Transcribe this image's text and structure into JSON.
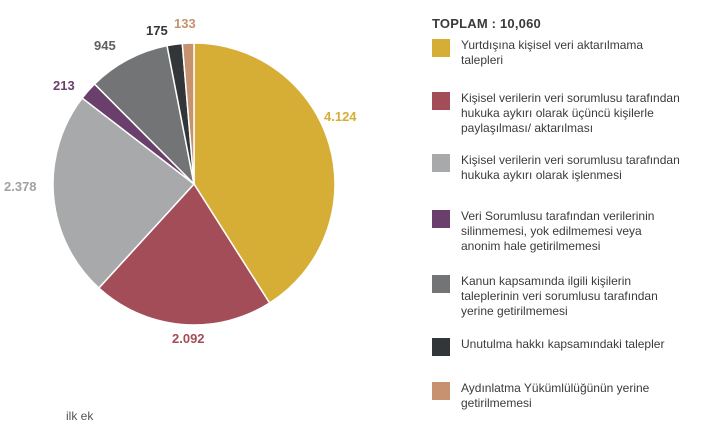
{
  "chart_data": {
    "type": "pie",
    "title": "",
    "total_label": "TOPLAM : 10,060",
    "slices": [
      {
        "label": "Yurtdışına kişisel veri aktarılmama talepleri",
        "value": 4124,
        "display": "4.124",
        "color": "#D6AE35",
        "label_color": "#D6AE35"
      },
      {
        "label": "Kişisel verilerin veri sorumlusu tarafından hukuka aykırı olarak üçüncü kişilerle paylaşılması/ aktarılması",
        "value": 2092,
        "display": "2.092",
        "color": "#A34D58",
        "label_color": "#A34D58"
      },
      {
        "label": "Kişisel verilerin veri sorumlusu tarafından hukuka aykırı olarak işlenmesi",
        "value": 2378,
        "display": "2.378",
        "color": "#A7A9AA",
        "label_color": "#A0A2A4"
      },
      {
        "label": "Veri Sorumlusu tarafından verilerinin silinmemesi, yok edilmemesi veya anonim hale getirilmemesi",
        "value": 213,
        "display": "213",
        "color": "#6B3F6C",
        "label_color": "#6B3F6C"
      },
      {
        "label": "Kanun kapsamında ilgili kişilerin taleplerinin veri sorumlusu tarafından yerine getirilmemesi",
        "value": 945,
        "display": "945",
        "color": "#737475",
        "label_color": "#5E5F60"
      },
      {
        "label": "Unutulma hakkı kapsamındaki talepler",
        "value": 175,
        "display": "175",
        "color": "#333639",
        "label_color": "#333639"
      },
      {
        "label": "Aydınlatma Yükümlülüğünün yerine getirilmemesi",
        "value": 133,
        "display": "133",
        "color": "#C6926F",
        "label_color": "#C6926F"
      }
    ]
  },
  "legend": {
    "items": [
      {
        "text_lines": [
          "Yurtdışına kişisel veri aktarılmama",
          "talepleri"
        ],
        "color": "#D6AE35"
      },
      {
        "text_lines": [
          "Kişisel verilerin veri sorumlusu tarafından",
          "hukuka aykırı olarak üçüncü kişilerle",
          "paylaşılması/ aktarılması"
        ],
        "color": "#A34D58"
      },
      {
        "text_lines": [
          "Kişisel verilerin veri sorumlusu tarafından",
          "hukuka aykırı olarak işlenmesi"
        ],
        "color": "#A7A9AA"
      },
      {
        "text_lines": [
          "Veri Sorumlusu tarafından verilerinin",
          "silinmemesi, yok edilmemesi veya",
          "anonim hale getirilmemesi"
        ],
        "color": "#6B3F6C"
      },
      {
        "text_lines": [
          "Kanun kapsamında ilgili kişilerin",
          "taleplerinin veri sorumlusu tarafından",
          "yerine getirilmemesi"
        ],
        "color": "#737475"
      },
      {
        "text_lines": [
          "Unutulma hakkı kapsamındaki talepler"
        ],
        "color": "#333639"
      },
      {
        "text_lines": [
          "Aydınlatma Yükümlülüğünün yerine",
          "getirilmemesi"
        ],
        "color": "#C6926F"
      }
    ]
  },
  "bottom_fragment": "ilk      ek"
}
